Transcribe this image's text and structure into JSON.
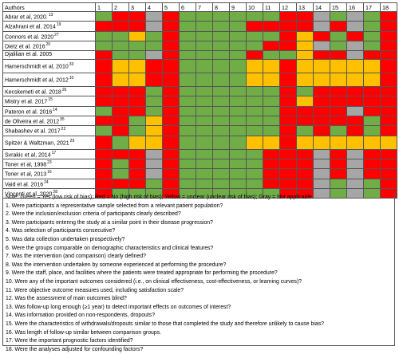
{
  "colors": {
    "G": "#70ad47",
    "R": "#ff0000",
    "Y": "#ffc000",
    "X": "#a6a6a6"
  },
  "table": {
    "author_header": "Authors",
    "columns": [
      "1",
      "2",
      "3",
      "4",
      "5",
      "6",
      "7",
      "8",
      "9",
      "10",
      "11",
      "12",
      "13",
      "14",
      "15",
      "16",
      "17",
      "18"
    ],
    "rows": [
      {
        "author": "Abrar et al, 2020.",
        "sup": "13",
        "lines": 1,
        "ratings": "GRRXRGGGGGGRRXGXGR"
      },
      {
        "author": "Alzahrani et al. 2014",
        "sup": "19",
        "lines": 1,
        "ratings": "RRRXRGGGGRRRRXRXGR"
      },
      {
        "author": "Connors et al. 2020",
        "sup": "27",
        "lines": 1,
        "ratings": "GGYGRGGGGGGRYRGRGR"
      },
      {
        "author": "Dietz et al. 2016",
        "sup": "20",
        "lines": 1,
        "ratings": "GGGGRGGGGGRRYXGXGR"
      },
      {
        "author": "Djalilian et al. 2005",
        "sup": "",
        "lines": 1,
        "ratings": "RGGXRGGGGRGGYRRXRR"
      },
      {
        "author": "Hamerschmidt et al, 2010",
        "sup": "33",
        "lines": 2,
        "ratings": "RYYRRGGGGYYRYYYYYR"
      },
      {
        "author": "Hamerschmidt et al, 2012",
        "sup": "10",
        "lines": 2,
        "ratings": "RYYRRGGGGYYRYYYYYR"
      },
      {
        "author": "Kecskemeti et al. 2018",
        "sup": "26",
        "lines": 1,
        "ratings": "RRRGRGGGGGGRGRRRRR"
      },
      {
        "author": "Mistry et al. 2017",
        "sup": "15",
        "lines": 1,
        "ratings": "RRRGRGGGGGGRYRRRRR"
      },
      {
        "author": "Pateron et al. 2016",
        "sup": "14",
        "lines": 1,
        "ratings": "GRRGRGGGGGGRRRRXRR"
      },
      {
        "author": "de Oliveira et al. 2012",
        "sup": "35",
        "lines": 1,
        "ratings": "RRGYRGGGGGGRRRRRGR"
      },
      {
        "author": "Shabashev et al. 2017",
        "sup": "22",
        "lines": 1,
        "ratings": "GRGYRGGGGGGRGRGRGR"
      },
      {
        "author": "Spitzer & Waltzman, 2021",
        "sup": "29",
        "lines": 2,
        "ratings": "RGYYRGGGGYYRYYYYYY"
      },
      {
        "author": "Svrakic et al, 2014",
        "sup": "17",
        "lines": 1,
        "ratings": "RRRXRGGGGGRRRXRXRR"
      },
      {
        "author": "Toner et al, 1998",
        "sup": "23",
        "lines": 1,
        "ratings": "RGRXRGGGGGRRRXRXRR"
      },
      {
        "author": "Toner et al, 2013",
        "sup": "16",
        "lines": 1,
        "ratings": "RGRXRGGGGGRRRXRXRR"
      },
      {
        "author": "Vaid et al. 2016",
        "sup": "24",
        "lines": 1,
        "ratings": "RRRGRGGGGGRRRXGXGR"
      },
      {
        "author": "Vincenti et al. 2020",
        "sup": "28",
        "lines": 1,
        "ratings": "RGGGRGGGGGGRRXGXGR"
      }
    ]
  },
  "notes": {
    "legend": "Note: Green = Yes (low risk of bias); Red = No (high risk of bias); Yellow = unclear (unclear risk of bias); Gray = Not applicable.",
    "items": [
      "1. Were participants a representative sample selected from a relevant patient population?",
      "2. Were the inclusion/exclusion criteria of participants clearly described?",
      "3. Were participants entering the study at a similar point in their disease progression?",
      "4. Was selection of participants consecutive?",
      "5. Was data collection undertaken prospectively?",
      "6. Were the groups comparable on demographic characteristics and clinical features?",
      "7. Was the intervention (and comparison) clearly defined?",
      "8. Was the intervention undertaken by someone experienced at performing the procedure?",
      "9. Were the staff, place, and facilities where the patients were treated appropriate for performing the procedure?",
      "10. Were any of the important outcomes considered (i.e., on clinical effectiveness, cost-effectiveness, or learning curves)?",
      "11. Were objective outcome measures used, including satisfaction scale?",
      "12. Was the assessment of main outcomes blind?",
      "13. Was follow-up long enough (≥1 year) to detect important effects on outcomes of interest?",
      "14. Was information provided on non-respondents, dropouts?",
      "15. Were the characteristics of withdrawals/dropouts similar to those that completed the study and therefore unlikely to cause bias?",
      "16. Was length of follow-up similar between comparison groups.",
      "17. Were the important prognostic factors identified?",
      "18. Were the analyses adjusted for confounding factors?"
    ]
  }
}
